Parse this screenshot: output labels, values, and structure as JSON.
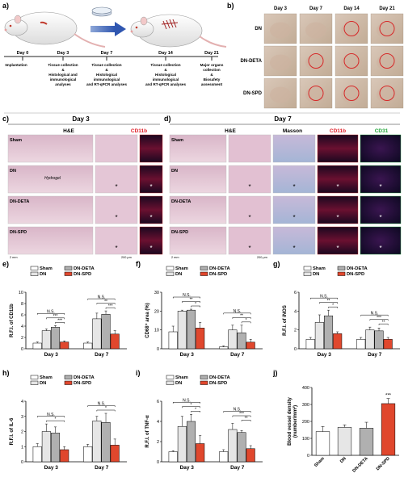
{
  "figure": {
    "panel_letters": [
      "a)",
      "b)",
      "c)",
      "d)",
      "e)",
      "f)",
      "g)",
      "h)",
      "i)",
      "j)"
    ],
    "timeline": {
      "days": [
        "Day 0",
        "Day 3",
        "Day 7",
        "Day 14",
        "Day 21"
      ],
      "events": [
        [
          "Implantation"
        ],
        [
          "Tissue collection",
          "&",
          "Histological and",
          "immunological",
          "analyses"
        ],
        [
          "Tissue collection",
          "&",
          "Histological",
          "immunological",
          "and RT-qPCR analyses"
        ],
        [
          "Tissue collection",
          "&",
          "Histological",
          "immunological",
          "and RT-qPCR analyses"
        ],
        [
          "Major organs",
          "collection",
          "&",
          "Biosafety",
          "assessment"
        ]
      ]
    },
    "photo_grid": {
      "columns": [
        "Day 3",
        "Day 7",
        "Day 14",
        "Day 21"
      ],
      "rows": [
        "DN",
        "DN-DETA",
        "DN-SPD"
      ]
    },
    "histology_c": {
      "title": "Day 3",
      "stains": [
        "H&E",
        "CD11b"
      ],
      "rows": [
        "Sham",
        "DN",
        "DN-DETA",
        "DN-SPD"
      ],
      "hydrogel_label": "Hydrogel",
      "scalebars": [
        "2 mm",
        "200 μm",
        "100 μm"
      ]
    },
    "histology_d": {
      "title": "Day 7",
      "stains": [
        "H&E",
        "Masson",
        "CD11b",
        "CD31"
      ],
      "rows": [
        "Sham",
        "DN",
        "DN-DETA",
        "DN-SPD"
      ],
      "scalebars": [
        "2 mm",
        "200 μm",
        "100 μm",
        "100 μm"
      ]
    }
  },
  "chart_data": [
    {
      "panel": "e)",
      "type": "bar",
      "ylabel": "R.F.I. of CD11b",
      "ylim": [
        0,
        10
      ],
      "yticks": [
        0,
        2,
        4,
        6,
        8,
        10
      ],
      "categories": [
        "Day 3",
        "Day 7"
      ],
      "series": [
        {
          "name": "Sham",
          "values": [
            1.0,
            1.0
          ],
          "errors": [
            0.2,
            0.2
          ]
        },
        {
          "name": "DN",
          "values": [
            3.2,
            5.3
          ],
          "errors": [
            0.3,
            1.0
          ]
        },
        {
          "name": "DN-DETA",
          "values": [
            3.8,
            6.1
          ],
          "errors": [
            0.3,
            0.6
          ]
        },
        {
          "name": "DN-SPD",
          "values": [
            1.2,
            2.6
          ],
          "errors": [
            0.2,
            0.6
          ]
        }
      ],
      "significance": [
        {
          "category": 0,
          "from": 0,
          "to": 3,
          "text": "N.S."
        },
        {
          "category": 0,
          "from": 1,
          "to": 3,
          "text": "***"
        },
        {
          "category": 0,
          "from": 2,
          "to": 3,
          "text": "***"
        },
        {
          "category": 1,
          "from": 0,
          "to": 3,
          "text": "N.S."
        },
        {
          "category": 1,
          "from": 1,
          "to": 3,
          "text": "**"
        },
        {
          "category": 1,
          "from": 2,
          "to": 3,
          "text": "***"
        }
      ]
    },
    {
      "panel": "f)",
      "type": "bar",
      "ylabel": "CD68⁺ area (%)",
      "ylim": [
        0,
        30
      ],
      "yticks": [
        0,
        10,
        20,
        30
      ],
      "categories": [
        "Day 3",
        "Day 7"
      ],
      "series": [
        {
          "name": "Sham",
          "values": [
            9.0,
            1.0
          ],
          "errors": [
            3.0,
            0.5
          ]
        },
        {
          "name": "DN",
          "values": [
            20.0,
            10.0
          ],
          "errors": [
            0.5,
            2.5
          ]
        },
        {
          "name": "DN-DETA",
          "values": [
            20.5,
            8.5
          ],
          "errors": [
            0.5,
            4.0
          ]
        },
        {
          "name": "DN-SPD",
          "values": [
            11.0,
            3.5
          ],
          "errors": [
            3.0,
            1.5
          ]
        }
      ],
      "significance": [
        {
          "category": 0,
          "from": 0,
          "to": 3,
          "text": "N.S."
        },
        {
          "category": 0,
          "from": 1,
          "to": 3,
          "text": "**"
        },
        {
          "category": 0,
          "from": 2,
          "to": 3,
          "text": "*"
        },
        {
          "category": 1,
          "from": 0,
          "to": 3,
          "text": "N.S."
        },
        {
          "category": 1,
          "from": 1,
          "to": 3,
          "text": "**"
        },
        {
          "category": 1,
          "from": 2,
          "to": 3,
          "text": "*"
        }
      ]
    },
    {
      "panel": "g)",
      "type": "bar",
      "ylabel": "R.F.I. of iNOS",
      "ylim": [
        0,
        6
      ],
      "yticks": [
        0,
        2,
        4,
        6
      ],
      "categories": [
        "Day 3",
        "Day 7"
      ],
      "series": [
        {
          "name": "Sham",
          "values": [
            1.0,
            1.0
          ],
          "errors": [
            0.2,
            0.2
          ]
        },
        {
          "name": "DN",
          "values": [
            2.8,
            2.0
          ],
          "errors": [
            0.8,
            0.3
          ]
        },
        {
          "name": "DN-DETA",
          "values": [
            3.5,
            1.9
          ],
          "errors": [
            0.6,
            0.3
          ]
        },
        {
          "name": "DN-SPD",
          "values": [
            1.6,
            1.0
          ],
          "errors": [
            0.2,
            0.2
          ]
        }
      ],
      "significance": [
        {
          "category": 0,
          "from": 0,
          "to": 3,
          "text": "N.S."
        },
        {
          "category": 0,
          "from": 1,
          "to": 3,
          "text": "**"
        },
        {
          "category": 0,
          "from": 2,
          "to": 3,
          "text": "*"
        },
        {
          "category": 1,
          "from": 0,
          "to": 3,
          "text": "N.S."
        },
        {
          "category": 1,
          "from": 1,
          "to": 3,
          "text": "***"
        },
        {
          "category": 1,
          "from": 2,
          "to": 3,
          "text": "**"
        }
      ]
    },
    {
      "panel": "h)",
      "type": "bar",
      "ylabel": "R.F.I. of IL-6",
      "ylim": [
        0,
        4
      ],
      "yticks": [
        0,
        1,
        2,
        3,
        4
      ],
      "categories": [
        "Day 3",
        "Day 7"
      ],
      "series": [
        {
          "name": "Sham",
          "values": [
            1.0,
            1.0
          ],
          "errors": [
            0.2,
            0.15
          ]
        },
        {
          "name": "DN",
          "values": [
            2.0,
            2.7
          ],
          "errors": [
            0.5,
            0.3
          ]
        },
        {
          "name": "DN-DETA",
          "values": [
            1.9,
            2.6
          ],
          "errors": [
            0.4,
            0.6
          ]
        },
        {
          "name": "DN-SPD",
          "values": [
            0.8,
            1.1
          ],
          "errors": [
            0.2,
            0.4
          ]
        }
      ],
      "significance": [
        {
          "category": 0,
          "from": 0,
          "to": 3,
          "text": "N.S."
        },
        {
          "category": 0,
          "from": 1,
          "to": 3,
          "text": "*"
        },
        {
          "category": 1,
          "from": 0,
          "to": 3,
          "text": "N.S."
        },
        {
          "category": 1,
          "from": 1,
          "to": 3,
          "text": "*"
        }
      ]
    },
    {
      "panel": "i)",
      "type": "bar",
      "ylabel": "R.F.I. of TNF-α",
      "ylim": [
        0,
        6
      ],
      "yticks": [
        0,
        2,
        4,
        6
      ],
      "categories": [
        "Day 3",
        "Day 7"
      ],
      "series": [
        {
          "name": "Sham",
          "values": [
            1.0,
            1.0
          ],
          "errors": [
            0.1,
            0.2
          ]
        },
        {
          "name": "DN",
          "values": [
            3.5,
            3.2
          ],
          "errors": [
            1.0,
            0.6
          ]
        },
        {
          "name": "DN-DETA",
          "values": [
            4.0,
            2.9
          ],
          "errors": [
            0.7,
            0.2
          ]
        },
        {
          "name": "DN-SPD",
          "values": [
            1.8,
            1.3
          ],
          "errors": [
            0.8,
            0.3
          ]
        }
      ],
      "significance": [
        {
          "category": 0,
          "from": 0,
          "to": 3,
          "text": "N.S."
        },
        {
          "category": 0,
          "from": 1,
          "to": 3,
          "text": "*"
        },
        {
          "category": 0,
          "from": 2,
          "to": 3,
          "text": "*"
        },
        {
          "category": 1,
          "from": 0,
          "to": 3,
          "text": "N.S."
        },
        {
          "category": 1,
          "from": 1,
          "to": 3,
          "text": "***"
        },
        {
          "category": 1,
          "from": 2,
          "to": 3,
          "text": "**"
        }
      ]
    },
    {
      "panel": "j)",
      "type": "bar",
      "ylabel": "Blood vessel density\n(number/mm²)",
      "ylim": [
        0,
        400
      ],
      "yticks": [
        0,
        100,
        200,
        300,
        400
      ],
      "categories": [
        "Sham",
        "DN",
        "DN-DETA",
        "DN-SPD"
      ],
      "values": [
        140,
        165,
        160,
        305
      ],
      "errors": [
        30,
        15,
        35,
        30
      ],
      "colors": [
        "#ffffff",
        "#e6e6e6",
        "#b0b0b0",
        "#e0472d"
      ],
      "stars": [
        {
          "index": 3,
          "text": "***"
        }
      ]
    }
  ],
  "colors": {
    "Sham": "#ffffff",
    "DN": "#e6e6e6",
    "DN-DETA": "#b0b0b0",
    "DN-SPD": "#e0472d"
  }
}
